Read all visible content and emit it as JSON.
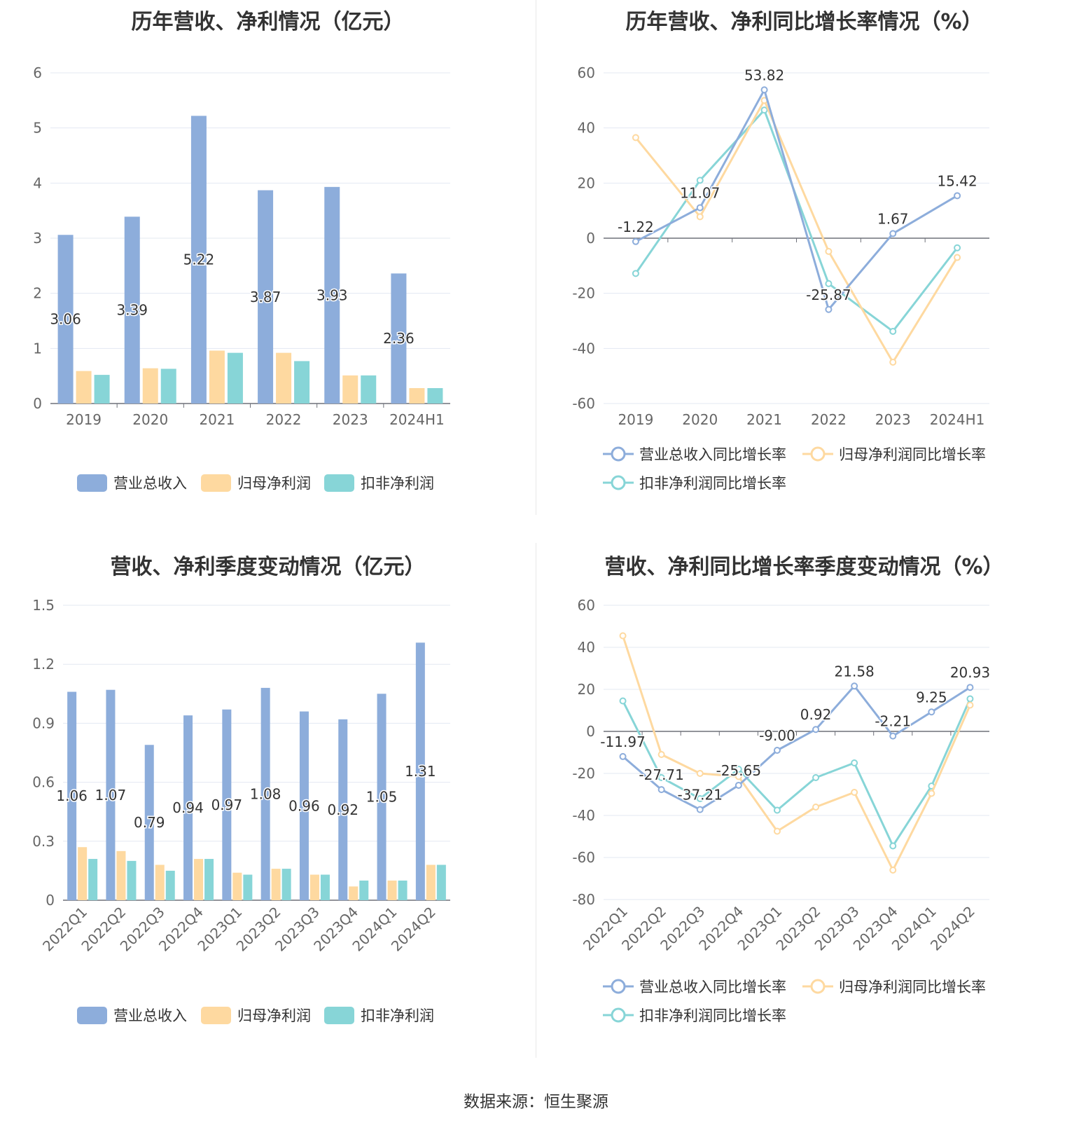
{
  "source": "数据来源：恒生聚源",
  "colors": {
    "revenue": "#8daddb",
    "net": "#fed9a0",
    "deduct": "#87d5d7",
    "revenue_line": "#8daddb",
    "net_line": "#fed9a0",
    "deduct_line": "#87d5d7"
  },
  "chart_data": [
    {
      "type": "bar",
      "title": "历年营收、净利情况（亿元）",
      "categories": [
        "2019",
        "2020",
        "2021",
        "2022",
        "2023",
        "2024H1"
      ],
      "ylim": [
        0,
        6
      ],
      "yticks": [
        "0",
        "1",
        "2",
        "3",
        "4",
        "5",
        "6"
      ],
      "ytick_values": [
        0,
        1,
        2,
        3,
        4,
        5,
        6
      ],
      "grid": true,
      "legend": "bottom",
      "series": [
        {
          "name": "营业总收入",
          "values": [
            3.06,
            3.39,
            5.22,
            3.87,
            3.93,
            2.36
          ],
          "labels": [
            "3.06",
            "3.39",
            "5.22",
            "3.87",
            "3.93",
            "2.36"
          ]
        },
        {
          "name": "归母净利润",
          "values": [
            0.59,
            0.64,
            0.96,
            0.92,
            0.51,
            0.28
          ]
        },
        {
          "name": "扣非净利润",
          "values": [
            0.52,
            0.63,
            0.92,
            0.77,
            0.51,
            0.28
          ]
        }
      ]
    },
    {
      "type": "line",
      "title": "历年营收、净利同比增长率情况（%）",
      "categories": [
        "2019",
        "2020",
        "2021",
        "2022",
        "2023",
        "2024H1"
      ],
      "ylim": [
        -60,
        60
      ],
      "yticks": [
        "-60",
        "-40",
        "-20",
        "0",
        "20",
        "40",
        "60"
      ],
      "ytick_values": [
        -60,
        -40,
        -20,
        0,
        20,
        40,
        60
      ],
      "grid": true,
      "legend": "bottom",
      "series": [
        {
          "name": "营业总收入同比增长率",
          "values": [
            -1.22,
            11.07,
            53.82,
            -25.87,
            1.67,
            15.42
          ],
          "labels": [
            "-1.22",
            "11.07",
            "53.82",
            "-25.87",
            "1.67",
            "15.42"
          ]
        },
        {
          "name": "归母净利润同比增长率",
          "values": [
            36.5,
            7.8,
            50.0,
            -4.8,
            -45.0,
            -7.0
          ]
        },
        {
          "name": "扣非净利润同比增长率",
          "values": [
            -12.8,
            21.0,
            46.5,
            -16.5,
            -33.8,
            -3.5
          ]
        }
      ]
    },
    {
      "type": "bar",
      "title": "营收、净利季度变动情况（亿元）",
      "categories": [
        "2022Q1",
        "2022Q2",
        "2022Q3",
        "2022Q4",
        "2023Q1",
        "2023Q2",
        "2023Q3",
        "2023Q4",
        "2024Q1",
        "2024Q2"
      ],
      "ylim": [
        0,
        1.5
      ],
      "yticks": [
        "0",
        "0.3",
        "0.6",
        "0.9",
        "1.2",
        "1.5"
      ],
      "ytick_values": [
        0,
        0.3,
        0.6,
        0.9,
        1.2,
        1.5
      ],
      "grid": true,
      "legend": "bottom",
      "series": [
        {
          "name": "营业总收入",
          "values": [
            1.06,
            1.07,
            0.79,
            0.94,
            0.97,
            1.08,
            0.96,
            0.92,
            1.05,
            1.31
          ],
          "labels": [
            "1.06",
            "1.07",
            "0.79",
            "0.94",
            "0.97",
            "1.08",
            "0.96",
            "0.92",
            "1.05",
            "1.31"
          ]
        },
        {
          "name": "归母净利润",
          "values": [
            0.27,
            0.25,
            0.18,
            0.21,
            0.14,
            0.16,
            0.13,
            0.07,
            0.1,
            0.18
          ]
        },
        {
          "name": "扣非净利润",
          "values": [
            0.21,
            0.2,
            0.15,
            0.21,
            0.13,
            0.16,
            0.13,
            0.1,
            0.1,
            0.18
          ]
        }
      ]
    },
    {
      "type": "line",
      "title": "营收、净利同比增长率季度变动情况（%）",
      "categories": [
        "2022Q1",
        "2022Q2",
        "2022Q3",
        "2022Q4",
        "2023Q1",
        "2023Q2",
        "2023Q3",
        "2023Q4",
        "2024Q1",
        "2024Q2"
      ],
      "ylim": [
        -80,
        60
      ],
      "yticks": [
        "-80",
        "-60",
        "-40",
        "-20",
        "0",
        "20",
        "40",
        "60"
      ],
      "ytick_values": [
        -80,
        -60,
        -40,
        -20,
        0,
        20,
        40,
        60
      ],
      "grid": true,
      "legend": "bottom",
      "series": [
        {
          "name": "营业总收入同比增长率",
          "values": [
            -11.97,
            -27.71,
            -37.21,
            -25.65,
            -9.0,
            0.92,
            21.58,
            -2.21,
            9.25,
            20.93
          ],
          "labels": [
            "-11.97",
            "-27.71",
            "-37.21",
            "-25.65",
            "-9.00",
            "0.92",
            "21.58",
            "-2.21",
            "9.25",
            "20.93"
          ]
        },
        {
          "name": "归母净利润同比增长率",
          "values": [
            45.5,
            -11.0,
            -20.0,
            -21.5,
            -47.5,
            -36.0,
            -29.0,
            -66.0,
            -29.5,
            12.5
          ]
        },
        {
          "name": "扣非净利润同比增长率",
          "values": [
            14.5,
            -22.0,
            -32.0,
            -18.0,
            -37.5,
            -22.0,
            -15.0,
            -54.5,
            -26.0,
            15.5
          ]
        }
      ]
    }
  ]
}
